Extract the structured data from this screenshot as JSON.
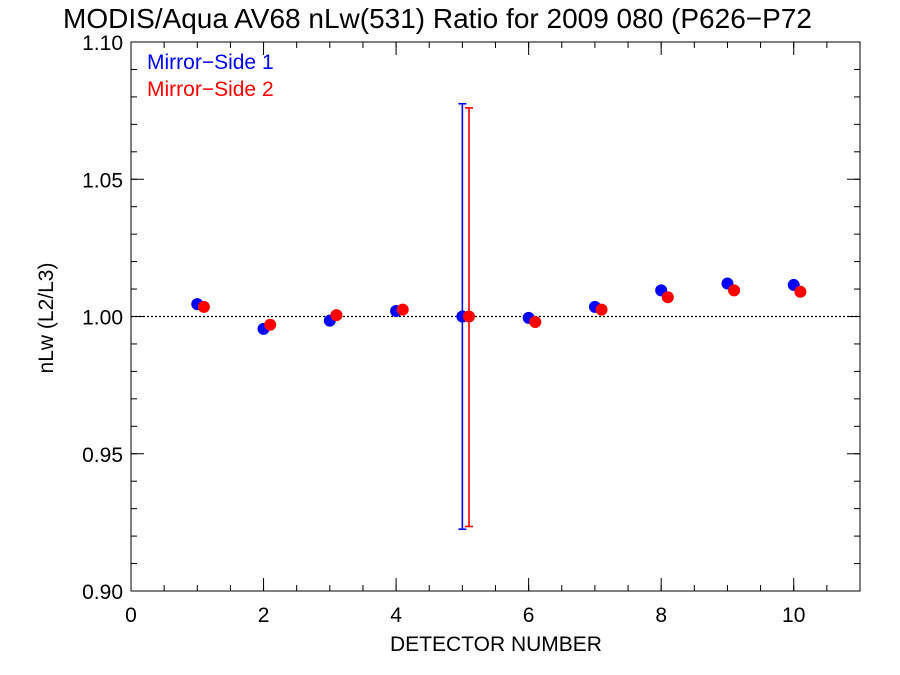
{
  "chart_data": {
    "type": "scatter",
    "title": "MODIS/Aqua AV68 nLw(531) Ratio for 2009 080 (P626−P72",
    "xlabel": "DETECTOR NUMBER",
    "ylabel": "nLw (L2/L3)",
    "xlim": [
      0,
      11
    ],
    "ylim": [
      0.9,
      1.1
    ],
    "x_ticks": [
      0,
      2,
      4,
      6,
      8,
      10
    ],
    "x_tick_labels": [
      "0",
      "2",
      "4",
      "6",
      "8",
      "10"
    ],
    "x_minor_step": 0.5,
    "y_ticks": [
      0.9,
      0.95,
      1.0,
      1.05,
      1.1
    ],
    "y_tick_labels": [
      "0.90",
      "0.95",
      "1.00",
      "1.05",
      "1.10"
    ],
    "y_minor_step": 0.01,
    "reference_line": 1.0,
    "grid": false,
    "legend_position": "top-left",
    "series": [
      {
        "name": "Mirror−Side 1",
        "color": "#0000ff",
        "x": [
          1,
          2,
          3,
          4,
          5,
          6,
          7,
          8,
          9,
          10
        ],
        "y": [
          1.0045,
          0.9955,
          0.9985,
          1.002,
          1.0,
          0.9995,
          1.0035,
          1.0095,
          1.012,
          1.0115
        ],
        "error_bars": [
          {
            "x": 5,
            "low": 0.9225,
            "high": 1.0775
          }
        ]
      },
      {
        "name": "Mirror−Side 2",
        "color": "#ff0000",
        "x": [
          1.1,
          2.1,
          3.1,
          4.1,
          5.1,
          6.1,
          7.1,
          8.1,
          9.1,
          10.1
        ],
        "y": [
          1.0035,
          0.997,
          1.0005,
          1.0025,
          1.0,
          0.998,
          1.0025,
          1.007,
          1.0095,
          1.009
        ],
        "error_bars": [
          {
            "x": 5.1,
            "low": 0.9235,
            "high": 1.076
          }
        ]
      }
    ]
  }
}
